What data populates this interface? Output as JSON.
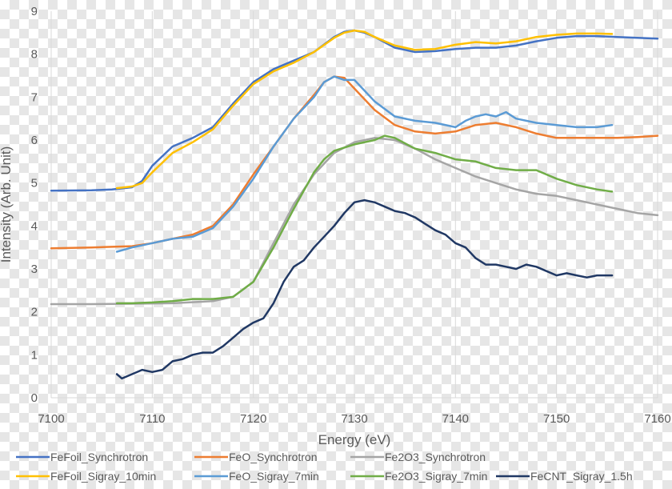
{
  "chart_data": {
    "type": "line",
    "title": "",
    "xlabel": "Energy (eV)",
    "ylabel": "Intensity (Arb. Unit)",
    "xlim": [
      7100,
      7160
    ],
    "ylim": [
      0,
      9
    ],
    "x_ticks": [
      7100,
      7110,
      7120,
      7130,
      7140,
      7150,
      7160
    ],
    "y_ticks": [
      0,
      1,
      2,
      3,
      4,
      5,
      6,
      7,
      8,
      9
    ],
    "grid": "vertical",
    "legend_position": "bottom",
    "series": [
      {
        "name": "FeFoil_Synchrotron",
        "color": "#4472C4",
        "x": [
          7100,
          7104,
          7106,
          7108,
          7109,
          7110,
          7112,
          7114,
          7116,
          7118,
          7120,
          7122,
          7124,
          7126,
          7128,
          7129,
          7130,
          7131,
          7132,
          7134,
          7136,
          7138,
          7140,
          7142,
          7144,
          7146,
          7148,
          7150,
          7152,
          7154,
          7156,
          7158,
          7160
        ],
        "y": [
          4.82,
          4.83,
          4.85,
          4.9,
          5.05,
          5.4,
          5.85,
          6.05,
          6.3,
          6.85,
          7.35,
          7.65,
          7.85,
          8.05,
          8.4,
          8.52,
          8.55,
          8.5,
          8.4,
          8.15,
          8.05,
          8.07,
          8.12,
          8.15,
          8.15,
          8.2,
          8.3,
          8.38,
          8.42,
          8.42,
          8.4,
          8.38,
          8.36
        ]
      },
      {
        "name": "FeO_Synchrotron",
        "color": "#ED7D31",
        "x": [
          7100,
          7104,
          7108,
          7110,
          7112,
          7114,
          7116,
          7118,
          7120,
          7122,
          7124,
          7126,
          7127,
          7128,
          7129,
          7130,
          7132,
          7134,
          7136,
          7138,
          7140,
          7142,
          7144,
          7146,
          7148,
          7150,
          7152,
          7154,
          7156,
          7158,
          7160
        ],
        "y": [
          3.48,
          3.5,
          3.53,
          3.6,
          3.7,
          3.8,
          4.0,
          4.5,
          5.2,
          5.85,
          6.5,
          7.05,
          7.35,
          7.48,
          7.45,
          7.2,
          6.7,
          6.35,
          6.2,
          6.15,
          6.2,
          6.35,
          6.4,
          6.3,
          6.15,
          6.05,
          6.05,
          6.05,
          6.05,
          6.07,
          6.1
        ]
      },
      {
        "name": "Fe2O3_Synchrotron",
        "color": "#A5A5A5",
        "x": [
          7100,
          7104,
          7108,
          7112,
          7116,
          7118,
          7120,
          7122,
          7124,
          7126,
          7128,
          7130,
          7132,
          7134,
          7136,
          7138,
          7140,
          7142,
          7144,
          7146,
          7148,
          7150,
          7152,
          7154,
          7156,
          7158,
          7160
        ],
        "y": [
          2.18,
          2.18,
          2.19,
          2.2,
          2.25,
          2.35,
          2.7,
          3.6,
          4.5,
          5.2,
          5.7,
          5.95,
          6.05,
          6.0,
          5.8,
          5.55,
          5.35,
          5.15,
          5.0,
          4.85,
          4.75,
          4.7,
          4.6,
          4.5,
          4.4,
          4.3,
          4.25
        ]
      },
      {
        "name": "FeFoil_Sigray_10min",
        "color": "#FFC000",
        "x": [
          7106.5,
          7108,
          7109,
          7110,
          7112,
          7114,
          7116,
          7118,
          7120,
          7122,
          7124,
          7126,
          7128,
          7129,
          7130,
          7131,
          7132,
          7134,
          7136,
          7138,
          7140,
          7142,
          7144,
          7146,
          7148,
          7150,
          7152,
          7154,
          7155.5
        ],
        "y": [
          4.88,
          4.92,
          5.0,
          5.25,
          5.7,
          5.95,
          6.25,
          6.8,
          7.3,
          7.6,
          7.8,
          8.05,
          8.38,
          8.5,
          8.55,
          8.52,
          8.4,
          8.2,
          8.1,
          8.12,
          8.22,
          8.28,
          8.25,
          8.3,
          8.4,
          8.45,
          8.48,
          8.48,
          8.47
        ]
      },
      {
        "name": "FeO_Sigray_7min",
        "color": "#5B9BD5",
        "x": [
          7106.5,
          7108,
          7110,
          7112,
          7114,
          7116,
          7118,
          7120,
          7122,
          7124,
          7126,
          7127,
          7128,
          7129,
          7130,
          7132,
          7134,
          7136,
          7138,
          7140,
          7141,
          7142,
          7143,
          7144,
          7145,
          7146,
          7148,
          7150,
          7152,
          7154,
          7155.5
        ],
        "y": [
          3.4,
          3.5,
          3.6,
          3.7,
          3.75,
          3.95,
          4.45,
          5.1,
          5.85,
          6.5,
          7.0,
          7.35,
          7.48,
          7.4,
          7.4,
          6.9,
          6.55,
          6.45,
          6.4,
          6.3,
          6.45,
          6.55,
          6.6,
          6.55,
          6.65,
          6.5,
          6.4,
          6.35,
          6.3,
          6.3,
          6.35
        ]
      },
      {
        "name": "Fe2O3_Sigray_7min",
        "color": "#70AD47",
        "x": [
          7106.5,
          7108,
          7110,
          7112,
          7114,
          7116,
          7118,
          7120,
          7122,
          7124,
          7126,
          7127,
          7128,
          7130,
          7132,
          7133,
          7134,
          7136,
          7138,
          7140,
          7142,
          7144,
          7146,
          7148,
          7150,
          7152,
          7154,
          7155.5
        ],
        "y": [
          2.2,
          2.2,
          2.22,
          2.25,
          2.3,
          2.3,
          2.35,
          2.7,
          3.5,
          4.4,
          5.25,
          5.55,
          5.75,
          5.9,
          6.0,
          6.1,
          6.05,
          5.8,
          5.7,
          5.55,
          5.5,
          5.35,
          5.3,
          5.3,
          5.1,
          4.95,
          4.85,
          4.8
        ]
      },
      {
        "name": "FeCNT_Sigray_1.5h",
        "color": "#203864",
        "x": [
          7106.5,
          7107,
          7108,
          7109,
          7110,
          7111,
          7112,
          7113,
          7114,
          7115,
          7116,
          7117,
          7118,
          7119,
          7120,
          7121,
          7122,
          7123,
          7124,
          7125,
          7126,
          7127,
          7128,
          7129,
          7130,
          7131,
          7132,
          7133,
          7134,
          7135,
          7136,
          7137,
          7138,
          7139,
          7140,
          7141,
          7142,
          7143,
          7144,
          7145,
          7146,
          7147,
          7148,
          7149,
          7150,
          7151,
          7152,
          7153,
          7154,
          7155,
          7155.5
        ],
        "y": [
          0.55,
          0.45,
          0.55,
          0.65,
          0.6,
          0.65,
          0.85,
          0.9,
          1.0,
          1.05,
          1.05,
          1.2,
          1.4,
          1.6,
          1.75,
          1.85,
          2.2,
          2.7,
          3.05,
          3.2,
          3.5,
          3.75,
          4.0,
          4.3,
          4.55,
          4.6,
          4.55,
          4.45,
          4.35,
          4.3,
          4.2,
          4.05,
          3.9,
          3.8,
          3.6,
          3.5,
          3.25,
          3.1,
          3.1,
          3.05,
          3.0,
          3.1,
          3.05,
          2.95,
          2.85,
          2.9,
          2.85,
          2.8,
          2.85,
          2.85,
          2.85
        ]
      }
    ]
  }
}
